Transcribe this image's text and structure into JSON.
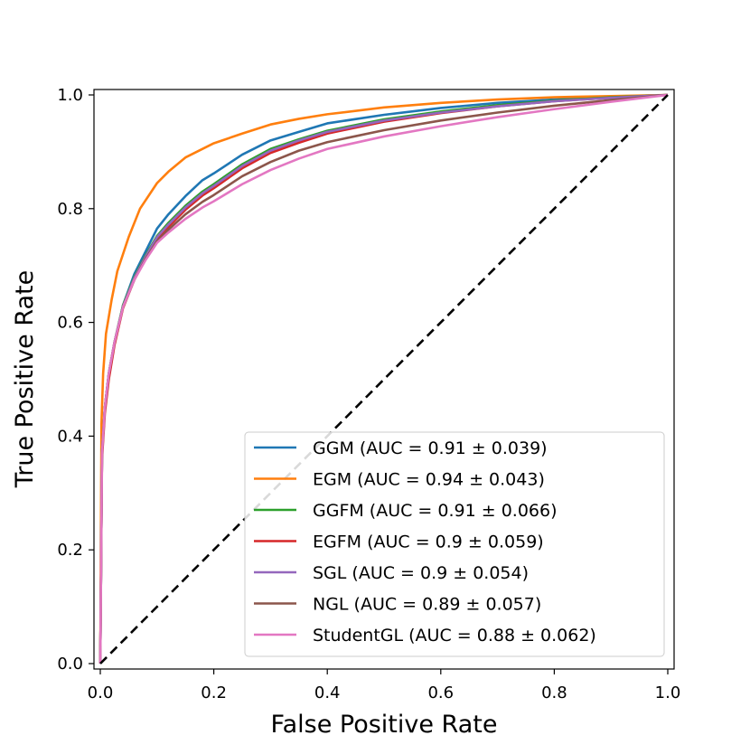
{
  "chart_data": {
    "type": "line",
    "title": "",
    "xlabel": "False Positive Rate",
    "ylabel": "True Positive Rate",
    "xlim": [
      0.0,
      1.0
    ],
    "ylim": [
      0.0,
      1.0
    ],
    "xticks": [
      "0.0",
      "0.2",
      "0.4",
      "0.6",
      "0.8",
      "1.0"
    ],
    "yticks": [
      "0.0",
      "0.2",
      "0.4",
      "0.6",
      "0.8",
      "1.0"
    ],
    "grid": false,
    "legend_position": "lower-right",
    "series": [
      {
        "name": "GGM (AUC = 0.91 ± 0.039)",
        "color": "#1f77b4",
        "x": [
          0,
          0.003,
          0.008,
          0.015,
          0.025,
          0.04,
          0.06,
          0.08,
          0.1,
          0.12,
          0.15,
          0.18,
          0.2,
          0.25,
          0.3,
          0.35,
          0.4,
          0.5,
          0.6,
          0.7,
          0.8,
          0.9,
          1.0
        ],
        "y": [
          0,
          0.37,
          0.45,
          0.51,
          0.565,
          0.63,
          0.685,
          0.725,
          0.765,
          0.79,
          0.822,
          0.85,
          0.862,
          0.895,
          0.92,
          0.935,
          0.95,
          0.965,
          0.977,
          0.986,
          0.992,
          0.997,
          1.0
        ]
      },
      {
        "name": "EGM (AUC = 0.94 ± 0.043)",
        "color": "#ff7f0e",
        "x": [
          0,
          0.002,
          0.005,
          0.01,
          0.02,
          0.03,
          0.05,
          0.07,
          0.1,
          0.12,
          0.15,
          0.2,
          0.25,
          0.3,
          0.35,
          0.4,
          0.5,
          0.6,
          0.7,
          0.8,
          0.9,
          1.0
        ],
        "y": [
          0,
          0.42,
          0.51,
          0.58,
          0.64,
          0.69,
          0.75,
          0.8,
          0.845,
          0.865,
          0.89,
          0.915,
          0.932,
          0.948,
          0.958,
          0.966,
          0.978,
          0.986,
          0.992,
          0.996,
          0.998,
          1.0
        ]
      },
      {
        "name": "GGFM (AUC = 0.91 ± 0.066)",
        "color": "#2ca02c",
        "x": [
          0,
          0.003,
          0.008,
          0.015,
          0.025,
          0.04,
          0.06,
          0.08,
          0.1,
          0.12,
          0.15,
          0.18,
          0.2,
          0.25,
          0.3,
          0.35,
          0.4,
          0.5,
          0.6,
          0.7,
          0.8,
          0.9,
          1.0
        ],
        "y": [
          0,
          0.37,
          0.45,
          0.51,
          0.565,
          0.63,
          0.68,
          0.718,
          0.752,
          0.775,
          0.805,
          0.83,
          0.843,
          0.878,
          0.905,
          0.922,
          0.937,
          0.957,
          0.971,
          0.982,
          0.99,
          0.996,
          1.0
        ]
      },
      {
        "name": "EGFM (AUC = 0.9 ± 0.059)",
        "color": "#d62728",
        "x": [
          0,
          0.003,
          0.008,
          0.015,
          0.025,
          0.04,
          0.06,
          0.08,
          0.1,
          0.12,
          0.15,
          0.18,
          0.2,
          0.25,
          0.3,
          0.35,
          0.4,
          0.5,
          0.6,
          0.7,
          0.8,
          0.9,
          1.0
        ],
        "y": [
          0,
          0.36,
          0.44,
          0.5,
          0.56,
          0.625,
          0.675,
          0.713,
          0.745,
          0.768,
          0.798,
          0.823,
          0.836,
          0.871,
          0.898,
          0.916,
          0.932,
          0.953,
          0.968,
          0.98,
          0.989,
          0.995,
          1.0
        ]
      },
      {
        "name": "SGL (AUC = 0.9 ± 0.054)",
        "color": "#9467bd",
        "x": [
          0,
          0.003,
          0.008,
          0.015,
          0.025,
          0.04,
          0.06,
          0.08,
          0.1,
          0.12,
          0.15,
          0.18,
          0.2,
          0.25,
          0.3,
          0.35,
          0.4,
          0.5,
          0.6,
          0.7,
          0.8,
          0.9,
          1.0
        ],
        "y": [
          0,
          0.37,
          0.45,
          0.51,
          0.565,
          0.628,
          0.678,
          0.716,
          0.75,
          0.772,
          0.802,
          0.827,
          0.84,
          0.875,
          0.902,
          0.92,
          0.935,
          0.955,
          0.969,
          0.98,
          0.989,
          0.995,
          1.0
        ]
      },
      {
        "name": "NGL (AUC = 0.89 ± 0.057)",
        "color": "#8c564b",
        "x": [
          0,
          0.003,
          0.008,
          0.015,
          0.025,
          0.04,
          0.06,
          0.08,
          0.1,
          0.12,
          0.15,
          0.18,
          0.2,
          0.25,
          0.3,
          0.35,
          0.4,
          0.5,
          0.6,
          0.7,
          0.8,
          0.9,
          1.0
        ],
        "y": [
          0,
          0.37,
          0.45,
          0.51,
          0.565,
          0.627,
          0.675,
          0.712,
          0.743,
          0.763,
          0.79,
          0.812,
          0.824,
          0.857,
          0.882,
          0.902,
          0.917,
          0.938,
          0.955,
          0.969,
          0.981,
          0.991,
          1.0
        ]
      },
      {
        "name": "StudentGL (AUC = 0.88 ± 0.062)",
        "color": "#e377c2",
        "x": [
          0,
          0.003,
          0.008,
          0.015,
          0.025,
          0.04,
          0.06,
          0.08,
          0.1,
          0.12,
          0.15,
          0.18,
          0.2,
          0.25,
          0.3,
          0.35,
          0.4,
          0.5,
          0.6,
          0.7,
          0.8,
          0.9,
          1.0
        ],
        "y": [
          0,
          0.37,
          0.45,
          0.51,
          0.565,
          0.627,
          0.675,
          0.71,
          0.74,
          0.758,
          0.782,
          0.802,
          0.813,
          0.843,
          0.868,
          0.888,
          0.905,
          0.927,
          0.945,
          0.961,
          0.975,
          0.988,
          1.0
        ]
      }
    ],
    "reference_line": {
      "name": "chance",
      "color": "#000000",
      "style": "dashed",
      "x": [
        0,
        1
      ],
      "y": [
        0,
        1
      ]
    }
  }
}
